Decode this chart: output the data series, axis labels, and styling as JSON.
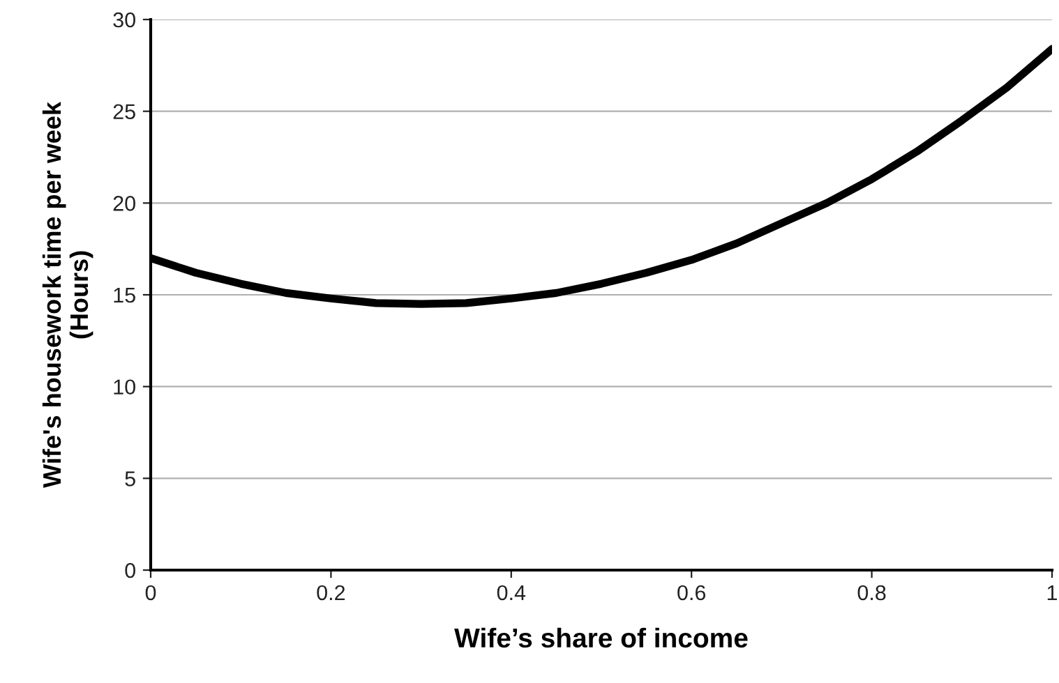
{
  "chart_data": {
    "type": "line",
    "xlabel": "Wife’s share of income",
    "ylabel": "Wife's housework time per week\n(Hours)",
    "x": [
      0,
      0.05,
      0.1,
      0.15,
      0.2,
      0.25,
      0.3,
      0.35,
      0.4,
      0.45,
      0.5,
      0.55,
      0.6,
      0.65,
      0.7,
      0.75,
      0.8,
      0.85,
      0.9,
      0.95,
      1.0
    ],
    "series": [
      {
        "color": "#000000",
        "values": [
          17.0,
          16.2,
          15.6,
          15.1,
          14.8,
          14.55,
          14.5,
          14.55,
          14.8,
          15.1,
          15.6,
          16.2,
          16.9,
          17.8,
          18.9,
          20.0,
          21.3,
          22.8,
          24.5,
          26.3,
          28.4
        ]
      }
    ],
    "xlim": [
      0,
      1
    ],
    "xticks": [
      0,
      0.2,
      0.4,
      0.6,
      0.8,
      1
    ],
    "ylim": [
      0,
      30
    ],
    "yticks": [
      0,
      5,
      10,
      15,
      20,
      25,
      30
    ],
    "grid": "y",
    "legend": false,
    "marker": "none",
    "line_style": "solid"
  }
}
